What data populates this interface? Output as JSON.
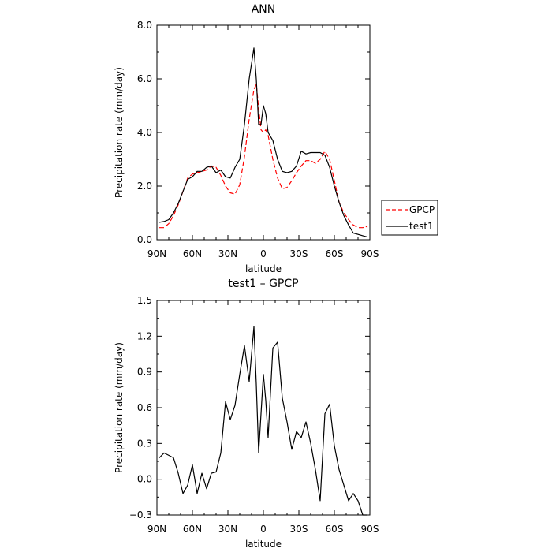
{
  "chart_data": [
    {
      "type": "line",
      "title": "ANN",
      "xlabel": "latitude",
      "ylabel": "Precipitation rate (mm/day)",
      "xlim": [
        90,
        -90
      ],
      "ylim": [
        0.0,
        8.0
      ],
      "x_ticks": [
        90,
        60,
        30,
        0,
        -30,
        -60,
        -90
      ],
      "x_tick_labels": [
        "90N",
        "60N",
        "30N",
        "0",
        "30S",
        "60S",
        "90S"
      ],
      "y_ticks": [
        0.0,
        2.0,
        4.0,
        6.0,
        8.0
      ],
      "y_tick_labels": [
        "0.0",
        "2.0",
        "4.0",
        "6.0",
        "8.0"
      ],
      "grid": false,
      "legend_position": "outside-right",
      "series": [
        {
          "name": "GPCP",
          "color": "#ff0000",
          "dash": "dashed",
          "x": [
            88,
            84,
            80,
            76,
            72,
            68,
            64,
            60,
            56,
            52,
            48,
            44,
            40,
            36,
            32,
            28,
            24,
            20,
            16,
            12,
            8,
            6,
            4,
            2,
            0,
            -2,
            -4,
            -8,
            -12,
            -16,
            -20,
            -24,
            -28,
            -32,
            -36,
            -40,
            -44,
            -48,
            -52,
            -56,
            -60,
            -64,
            -68,
            -72,
            -76,
            -80,
            -84,
            -88
          ],
          "y": [
            0.45,
            0.45,
            0.6,
            0.9,
            1.3,
            1.8,
            2.3,
            2.45,
            2.5,
            2.55,
            2.6,
            2.75,
            2.7,
            2.4,
            2.0,
            1.75,
            1.7,
            2.05,
            3.1,
            4.5,
            5.6,
            5.8,
            4.9,
            4.1,
            4.0,
            4.1,
            3.9,
            3.0,
            2.3,
            1.9,
            1.95,
            2.2,
            2.5,
            2.75,
            2.95,
            2.95,
            2.85,
            3.0,
            3.3,
            3.0,
            2.2,
            1.4,
            1.0,
            0.75,
            0.55,
            0.45,
            0.45,
            0.5
          ]
        },
        {
          "name": "test1",
          "color": "#000000",
          "dash": "solid",
          "x": [
            88,
            84,
            80,
            76,
            72,
            68,
            64,
            60,
            56,
            52,
            48,
            44,
            40,
            36,
            32,
            28,
            24,
            20,
            16,
            12,
            8,
            6,
            4,
            2,
            0,
            -2,
            -4,
            -8,
            -12,
            -16,
            -20,
            -24,
            -28,
            -32,
            -36,
            -40,
            -44,
            -48,
            -52,
            -56,
            -60,
            -64,
            -68,
            -72,
            -76,
            -80,
            -84,
            -88
          ],
          "y": [
            0.65,
            0.68,
            0.75,
            1.0,
            1.35,
            1.8,
            2.25,
            2.35,
            2.55,
            2.55,
            2.7,
            2.75,
            2.5,
            2.6,
            2.35,
            2.3,
            2.7,
            3.0,
            4.3,
            6.0,
            7.15,
            6.0,
            4.3,
            4.3,
            5.0,
            4.7,
            4.0,
            3.7,
            3.0,
            2.55,
            2.5,
            2.55,
            2.75,
            3.3,
            3.2,
            3.25,
            3.25,
            3.25,
            3.15,
            2.7,
            2.0,
            1.4,
            0.9,
            0.55,
            0.25,
            0.2,
            0.15,
            0.1
          ]
        }
      ]
    },
    {
      "type": "line",
      "title": "test1 – GPCP",
      "xlabel": "latitude",
      "ylabel": "Precipitation rate (mm/day)",
      "xlim": [
        90,
        -90
      ],
      "ylim": [
        -0.3,
        1.5
      ],
      "x_ticks": [
        90,
        60,
        30,
        0,
        -30,
        -60,
        -90
      ],
      "x_tick_labels": [
        "90N",
        "60N",
        "30N",
        "0",
        "30S",
        "60S",
        "90S"
      ],
      "y_ticks": [
        -0.3,
        0.0,
        0.3,
        0.6,
        0.9,
        1.2,
        1.5
      ],
      "y_tick_labels": [
        "−0.3",
        "0.0",
        "0.3",
        "0.6",
        "0.9",
        "1.2",
        "1.5"
      ],
      "grid": false,
      "series": [
        {
          "color": "#000000",
          "dash": "solid",
          "x": [
            88,
            84,
            80,
            76,
            72,
            68,
            64,
            60,
            56,
            52,
            48,
            44,
            40,
            36,
            32,
            28,
            24,
            20,
            16,
            12,
            8,
            6,
            4,
            0,
            -2,
            -4,
            -8,
            -12,
            -16,
            -20,
            -24,
            -28,
            -32,
            -36,
            -40,
            -44,
            -48,
            -52,
            -56,
            -60,
            -64,
            -68,
            -72,
            -76,
            -80,
            -84,
            -88
          ],
          "y": [
            0.18,
            0.22,
            0.2,
            0.18,
            0.05,
            -0.12,
            -0.05,
            0.12,
            -0.12,
            0.05,
            -0.08,
            0.05,
            0.06,
            0.22,
            0.65,
            0.5,
            0.62,
            0.88,
            1.12,
            0.82,
            1.28,
            0.8,
            0.22,
            0.88,
            0.66,
            0.35,
            1.1,
            1.15,
            0.68,
            0.48,
            0.25,
            0.4,
            0.35,
            0.48,
            0.3,
            0.08,
            -0.18,
            0.55,
            0.63,
            0.28,
            0.08,
            -0.05,
            -0.18,
            -0.12,
            -0.18,
            -0.3,
            -0.3
          ]
        }
      ]
    }
  ]
}
